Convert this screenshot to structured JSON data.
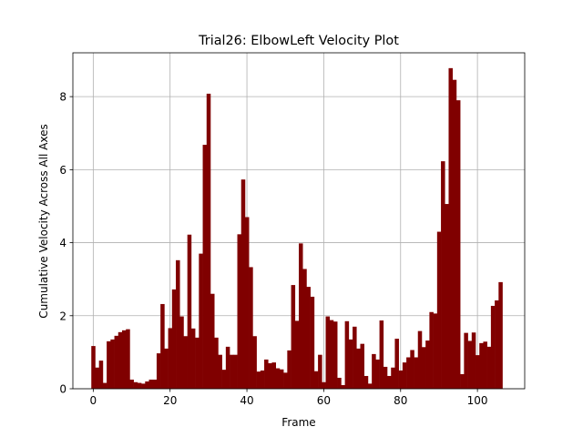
{
  "chart_data": {
    "type": "bar",
    "title": "Trial26: ElbowLeft Velocity Plot",
    "xlabel": "Frame",
    "ylabel": "Cumulative Velocity Across All Axes",
    "xlim": [
      -5.3,
      112.3
    ],
    "ylim": [
      0,
      9.2
    ],
    "xticks": [
      0,
      20,
      40,
      60,
      80,
      100
    ],
    "yticks": [
      0,
      2,
      4,
      6,
      8
    ],
    "grid": true,
    "bar_color": "#800000",
    "bar_width": 1.0,
    "x": [
      0,
      1,
      2,
      3,
      4,
      5,
      6,
      7,
      8,
      9,
      10,
      11,
      12,
      13,
      14,
      15,
      16,
      17,
      18,
      19,
      20,
      21,
      22,
      23,
      24,
      25,
      26,
      27,
      28,
      29,
      30,
      31,
      32,
      33,
      34,
      35,
      36,
      37,
      38,
      39,
      40,
      41,
      42,
      43,
      44,
      45,
      46,
      47,
      48,
      49,
      50,
      51,
      52,
      53,
      54,
      55,
      56,
      57,
      58,
      59,
      60,
      61,
      62,
      63,
      64,
      65,
      66,
      67,
      68,
      69,
      70,
      71,
      72,
      73,
      74,
      75,
      76,
      77,
      78,
      79,
      80,
      81,
      82,
      83,
      84,
      85,
      86,
      87,
      88,
      89,
      90,
      91,
      92,
      93,
      94,
      95,
      96,
      97,
      98,
      99,
      100,
      101,
      102,
      103,
      104,
      105,
      106
    ],
    "values": [
      1.17,
      0.58,
      0.77,
      0.16,
      1.3,
      1.35,
      1.45,
      1.55,
      1.6,
      1.63,
      0.25,
      0.18,
      0.16,
      0.14,
      0.2,
      0.25,
      0.25,
      0.97,
      2.32,
      1.1,
      1.66,
      2.72,
      3.52,
      1.98,
      1.44,
      4.22,
      1.65,
      1.4,
      3.7,
      6.68,
      8.08,
      2.6,
      1.4,
      0.93,
      0.52,
      1.15,
      0.93,
      0.93,
      4.23,
      5.73,
      4.7,
      3.33,
      1.44,
      0.47,
      0.5,
      0.8,
      0.7,
      0.72,
      0.56,
      0.53,
      0.44,
      1.05,
      2.84,
      1.86,
      3.98,
      3.28,
      2.79,
      2.52,
      0.48,
      0.93,
      0.18,
      1.98,
      1.88,
      1.84,
      0.3,
      0.1,
      1.85,
      1.35,
      1.7,
      1.1,
      1.23,
      0.35,
      0.14,
      0.95,
      0.8,
      1.87,
      0.6,
      0.35,
      0.58,
      1.37,
      0.5,
      0.72,
      0.86,
      1.06,
      0.86,
      1.58,
      1.14,
      1.32,
      2.1,
      2.06,
      4.3,
      6.23,
      5.06,
      8.78,
      8.46,
      7.9,
      0.4,
      1.53,
      1.31,
      1.54,
      0.92,
      1.25,
      1.29,
      1.15,
      2.27,
      2.42,
      2.92
    ]
  }
}
